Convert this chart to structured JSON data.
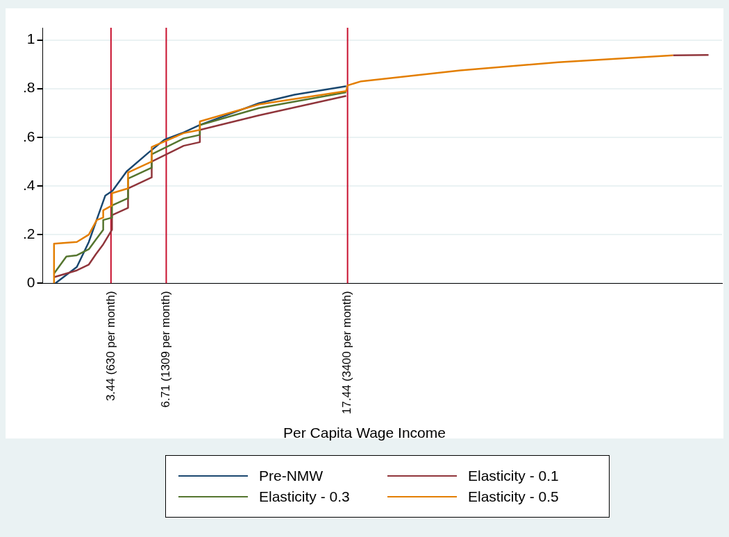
{
  "chart_data": {
    "type": "step",
    "annotations": [
      "Per Capita Wage Income"
    ],
    "xlim": [
      -0.6,
      39.6
    ],
    "xticks": [
      {
        "value": 3.44,
        "label": null
      },
      {
        "value": 6.71,
        "label": null
      },
      {
        "value": 17.44,
        "label": null
      }
    ],
    "ylim": [
      0,
      1.05
    ],
    "yticks": [
      {
        "value": 0,
        "label": "0"
      },
      {
        "value": 0.2,
        "label": ".2"
      },
      {
        "value": 0.4,
        "label": ".4"
      },
      {
        "value": 0.6,
        "label": ".6"
      },
      {
        "value": 0.8,
        "label": ".8"
      },
      {
        "value": 1,
        "label": "1"
      }
    ],
    "grid": "y",
    "legend": "bottom",
    "ref_lines": [
      {
        "axis": "x",
        "value": 3.44,
        "label": "3.44 (630 per month)",
        "color": "#c8102e"
      },
      {
        "axis": "x",
        "value": 6.71,
        "label": "6.71 (1309 per month)",
        "color": "#c8102e"
      },
      {
        "axis": "x",
        "value": 17.44,
        "label": "17.44 (3400 per month)",
        "color": "#c8102e"
      }
    ],
    "series": [
      {
        "name": "Pre-NMW",
        "color": "#1a476f",
        "type": "line",
        "x": [
          0.15,
          1.42,
          2.13,
          3.1,
          3.53,
          4.37,
          5.63,
          6.6,
          7.74,
          8.67,
          12.2,
          14.3,
          17.36
        ],
        "values": [
          0,
          0.067,
          0.17,
          0.36,
          0.38,
          0.46,
          0.535,
          0.59,
          0.62,
          0.65,
          0.74,
          0.775,
          0.81
        ]
      },
      {
        "name": "Elasticity - 0.1",
        "color": "#90353b",
        "x": [
          0.07,
          1.42,
          2.13,
          2.55,
          2.98,
          3.5,
          3.5,
          4.45,
          4.45,
          5.85,
          5.85,
          7.74,
          8.7,
          8.7,
          12.2,
          17.36,
          27,
          36.7,
          38.8
        ],
        "values": [
          0.025,
          0.053,
          0.077,
          0.12,
          0.16,
          0.22,
          0.28,
          0.31,
          0.39,
          0.435,
          0.5,
          0.565,
          0.58,
          0.63,
          0.69,
          0.77,
          null,
          0.937,
          0.938
        ]
      },
      {
        "name": "Elasticity - 0.3",
        "color": "#55752f",
        "x": [
          0.07,
          0.8,
          1.42,
          2.13,
          2.55,
          2.98,
          2.98,
          3.5,
          3.5,
          4.45,
          4.45,
          5.85,
          5.85,
          7.74,
          8.7,
          8.7,
          12.2,
          17.36
        ],
        "values": [
          0.04,
          0.11,
          0.115,
          0.14,
          0.18,
          0.22,
          0.26,
          0.27,
          0.32,
          0.35,
          0.43,
          0.475,
          0.53,
          0.595,
          0.61,
          0.65,
          0.72,
          0.785
        ]
      },
      {
        "name": "Elasticity - 0.5",
        "color": "#e37e00",
        "x": [
          0.07,
          0.07,
          1.42,
          2.13,
          2.6,
          2.98,
          2.98,
          3.5,
          3.5,
          4.45,
          4.45,
          5.85,
          5.85,
          7.74,
          8.7,
          8.7,
          12.2,
          17.36,
          17.44,
          18.25,
          24.1,
          29.9,
          36.7
        ],
        "values": [
          0,
          0.163,
          0.17,
          0.2,
          0.26,
          0.27,
          0.3,
          0.32,
          0.37,
          0.39,
          0.455,
          0.5,
          0.56,
          0.617,
          0.63,
          0.665,
          0.735,
          0.79,
          0.813,
          0.83,
          0.875,
          0.908,
          0.937
        ]
      }
    ]
  }
}
